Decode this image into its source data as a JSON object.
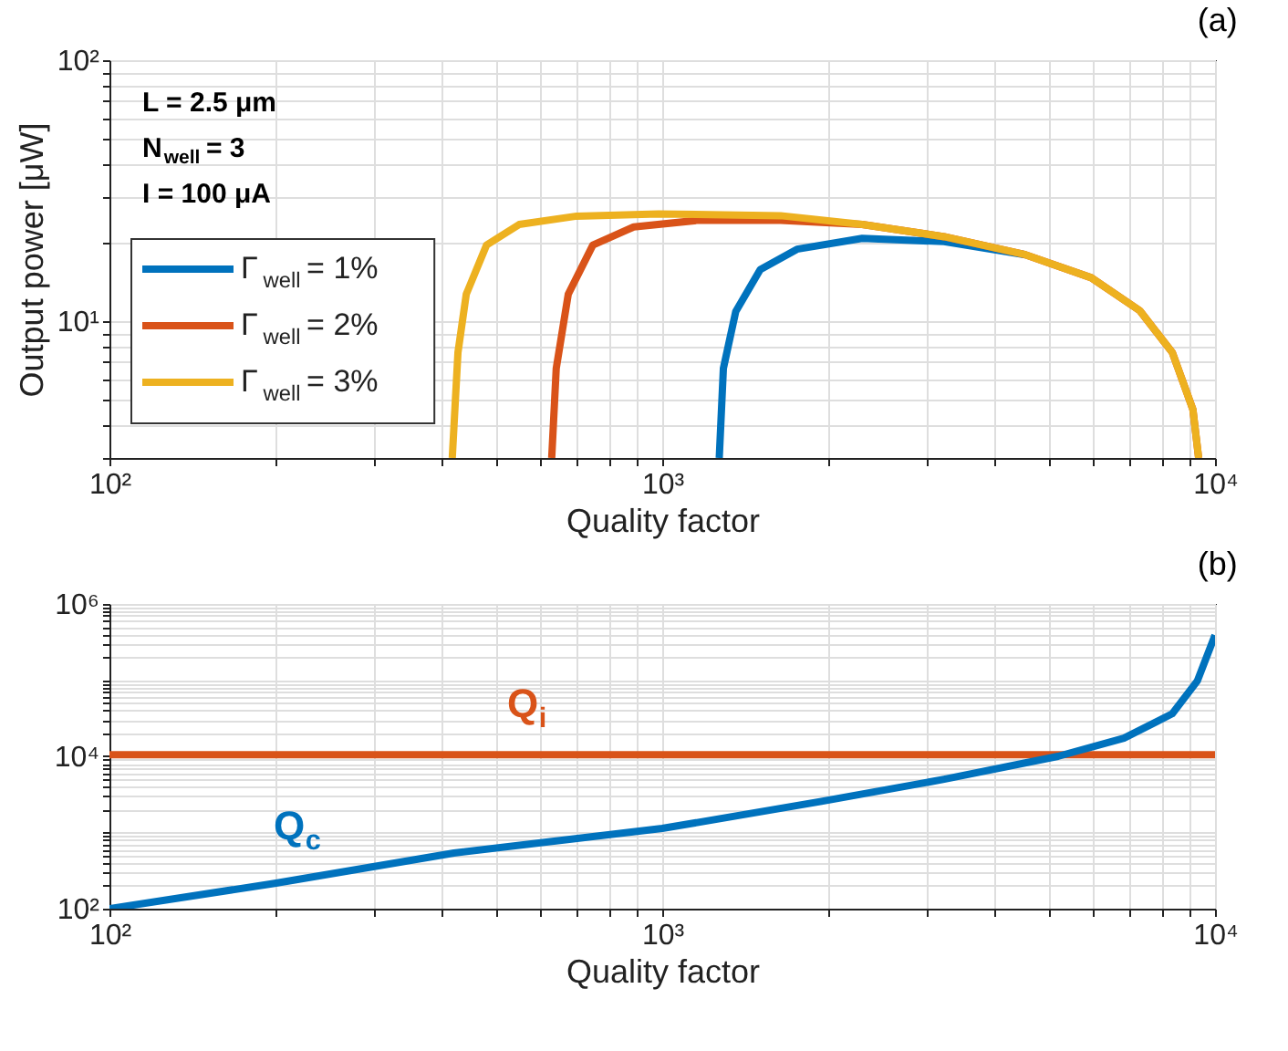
{
  "chart_data": [
    {
      "type": "line",
      "title": "(a)",
      "xlabel": "Quality factor",
      "ylabel": "Output power [μW]",
      "log": "xy",
      "grid": true,
      "legend": "left",
      "xlim": [
        100,
        10000
      ],
      "ylim": [
        3,
        100
      ],
      "xticks": [
        {
          "value": 100,
          "label": "10²"
        },
        {
          "value": 200,
          "label": null
        },
        {
          "value": 300,
          "label": null
        },
        {
          "value": 400,
          "label": null
        },
        {
          "value": 500,
          "label": null
        },
        {
          "value": 600,
          "label": null
        },
        {
          "value": 700,
          "label": null
        },
        {
          "value": 800,
          "label": null
        },
        {
          "value": 900,
          "label": null
        },
        {
          "value": 1000,
          "label": "10³"
        },
        {
          "value": 2000,
          "label": null
        },
        {
          "value": 3000,
          "label": null
        },
        {
          "value": 4000,
          "label": null
        },
        {
          "value": 5000,
          "label": null
        },
        {
          "value": 6000,
          "label": null
        },
        {
          "value": 7000,
          "label": null
        },
        {
          "value": 8000,
          "label": null
        },
        {
          "value": 9000,
          "label": null
        },
        {
          "value": 10000,
          "label": "10⁴"
        }
      ],
      "yticks": [
        {
          "value": 3,
          "label": null
        },
        {
          "value": 4,
          "label": null
        },
        {
          "value": 5,
          "label": null
        },
        {
          "value": 6,
          "label": null
        },
        {
          "value": 7,
          "label": null
        },
        {
          "value": 8,
          "label": null
        },
        {
          "value": 9,
          "label": null
        },
        {
          "value": 10,
          "label": "10¹"
        },
        {
          "value": 20,
          "label": null
        },
        {
          "value": 30,
          "label": null
        },
        {
          "value": 40,
          "label": null
        },
        {
          "value": 50,
          "label": null
        },
        {
          "value": 60,
          "label": null
        },
        {
          "value": 70,
          "label": null
        },
        {
          "value": 80,
          "label": null
        },
        {
          "value": 90,
          "label": null
        },
        {
          "value": 100,
          "label": "10²"
        }
      ],
      "annotations": [
        "L = 2.5 μm",
        "N$_{well}$ = 3",
        "I = 100 μA"
      ],
      "series": [
        {
          "name": "Γ$_{well}$ = 1%",
          "color": "#0072bd",
          "x": [
            1268,
            1290,
            1358,
            1504,
            1753,
            2300,
            3236,
            4540
          ],
          "values": [
            3,
            6.6,
            10.9,
            15.8,
            18.9,
            20.8,
            20.2,
            18
          ]
        },
        {
          "name": "Γ$_{well}$ = 2%",
          "color": "#d95319",
          "x": [
            631,
            643,
            676,
            749,
            888,
            1166,
            1637,
            2300,
            3236,
            4540,
            5970,
            7310,
            8370,
            9120,
            9340
          ],
          "values": [
            3,
            6.6,
            12.7,
            19.6,
            23,
            24.4,
            24.4,
            23.5,
            21.1,
            18,
            14.7,
            11,
            7.6,
            4.6,
            3
          ]
        },
        {
          "name": "Γ$_{well}$ = 3%",
          "color": "#edb120",
          "x": [
            417,
            427,
            442,
            481,
            551,
            700,
            984,
            1637,
            2300,
            3236,
            4540,
            5970,
            7310,
            8370,
            9120,
            9340
          ],
          "values": [
            3,
            7.6,
            12.7,
            19.6,
            23.5,
            25.3,
            25.8,
            25.4,
            23.5,
            21.1,
            18,
            14.7,
            11,
            7.6,
            4.6,
            3
          ]
        }
      ]
    },
    {
      "type": "line",
      "title": "(b)",
      "xlabel": "Quality factor",
      "log": "xy",
      "grid": true,
      "xlim": [
        100,
        10000
      ],
      "ylim": [
        100,
        1000000
      ],
      "xticks": [
        {
          "value": 100,
          "label": "10²"
        },
        {
          "value": 200,
          "label": null
        },
        {
          "value": 300,
          "label": null
        },
        {
          "value": 400,
          "label": null
        },
        {
          "value": 500,
          "label": null
        },
        {
          "value": 600,
          "label": null
        },
        {
          "value": 700,
          "label": null
        },
        {
          "value": 800,
          "label": null
        },
        {
          "value": 900,
          "label": null
        },
        {
          "value": 1000,
          "label": "10³"
        },
        {
          "value": 2000,
          "label": null
        },
        {
          "value": 3000,
          "label": null
        },
        {
          "value": 4000,
          "label": null
        },
        {
          "value": 5000,
          "label": null
        },
        {
          "value": 6000,
          "label": null
        },
        {
          "value": 7000,
          "label": null
        },
        {
          "value": 8000,
          "label": null
        },
        {
          "value": 9000,
          "label": null
        },
        {
          "value": 10000,
          "label": "10⁴"
        }
      ],
      "yticks": [
        {
          "value": 100,
          "label": "10²"
        },
        {
          "value": 200,
          "label": null
        },
        {
          "value": 300,
          "label": null
        },
        {
          "value": 400,
          "label": null
        },
        {
          "value": 500,
          "label": null
        },
        {
          "value": 600,
          "label": null
        },
        {
          "value": 700,
          "label": null
        },
        {
          "value": 800,
          "label": null
        },
        {
          "value": 900,
          "label": null
        },
        {
          "value": 1000,
          "label": null
        },
        {
          "value": 2000,
          "label": null
        },
        {
          "value": 3000,
          "label": null
        },
        {
          "value": 4000,
          "label": null
        },
        {
          "value": 5000,
          "label": null
        },
        {
          "value": 6000,
          "label": null
        },
        {
          "value": 7000,
          "label": null
        },
        {
          "value": 8000,
          "label": null
        },
        {
          "value": 9000,
          "label": null
        },
        {
          "value": 10000,
          "label": "10⁴"
        },
        {
          "value": 20000,
          "label": null
        },
        {
          "value": 30000,
          "label": null
        },
        {
          "value": 40000,
          "label": null
        },
        {
          "value": 50000,
          "label": null
        },
        {
          "value": 60000,
          "label": null
        },
        {
          "value": 70000,
          "label": null
        },
        {
          "value": 80000,
          "label": null
        },
        {
          "value": 90000,
          "label": null
        },
        {
          "value": 100000,
          "label": null
        },
        {
          "value": 200000,
          "label": null
        },
        {
          "value": 300000,
          "label": null
        },
        {
          "value": 400000,
          "label": null
        },
        {
          "value": 500000,
          "label": null
        },
        {
          "value": 600000,
          "label": null
        },
        {
          "value": 700000,
          "label": null
        },
        {
          "value": 800000,
          "label": null
        },
        {
          "value": 900000,
          "label": null
        },
        {
          "value": 1000000,
          "label": "10⁶"
        }
      ],
      "series": [
        {
          "name": "Q$_{i}$",
          "color": "#d95319",
          "x": [
            100,
            10000
          ],
          "values": [
            10500,
            10500
          ]
        },
        {
          "name": "Q$_{c}$",
          "color": "#0072bd",
          "x": [
            100,
            199,
            420,
            1000,
            1941,
            3236,
            5200,
            6840,
            8370,
            9290,
            10000
          ],
          "values": [
            100,
            215,
            538,
            1130,
            2560,
            5000,
            10000,
            17300,
            36300,
            97700,
            390000
          ]
        }
      ]
    }
  ]
}
